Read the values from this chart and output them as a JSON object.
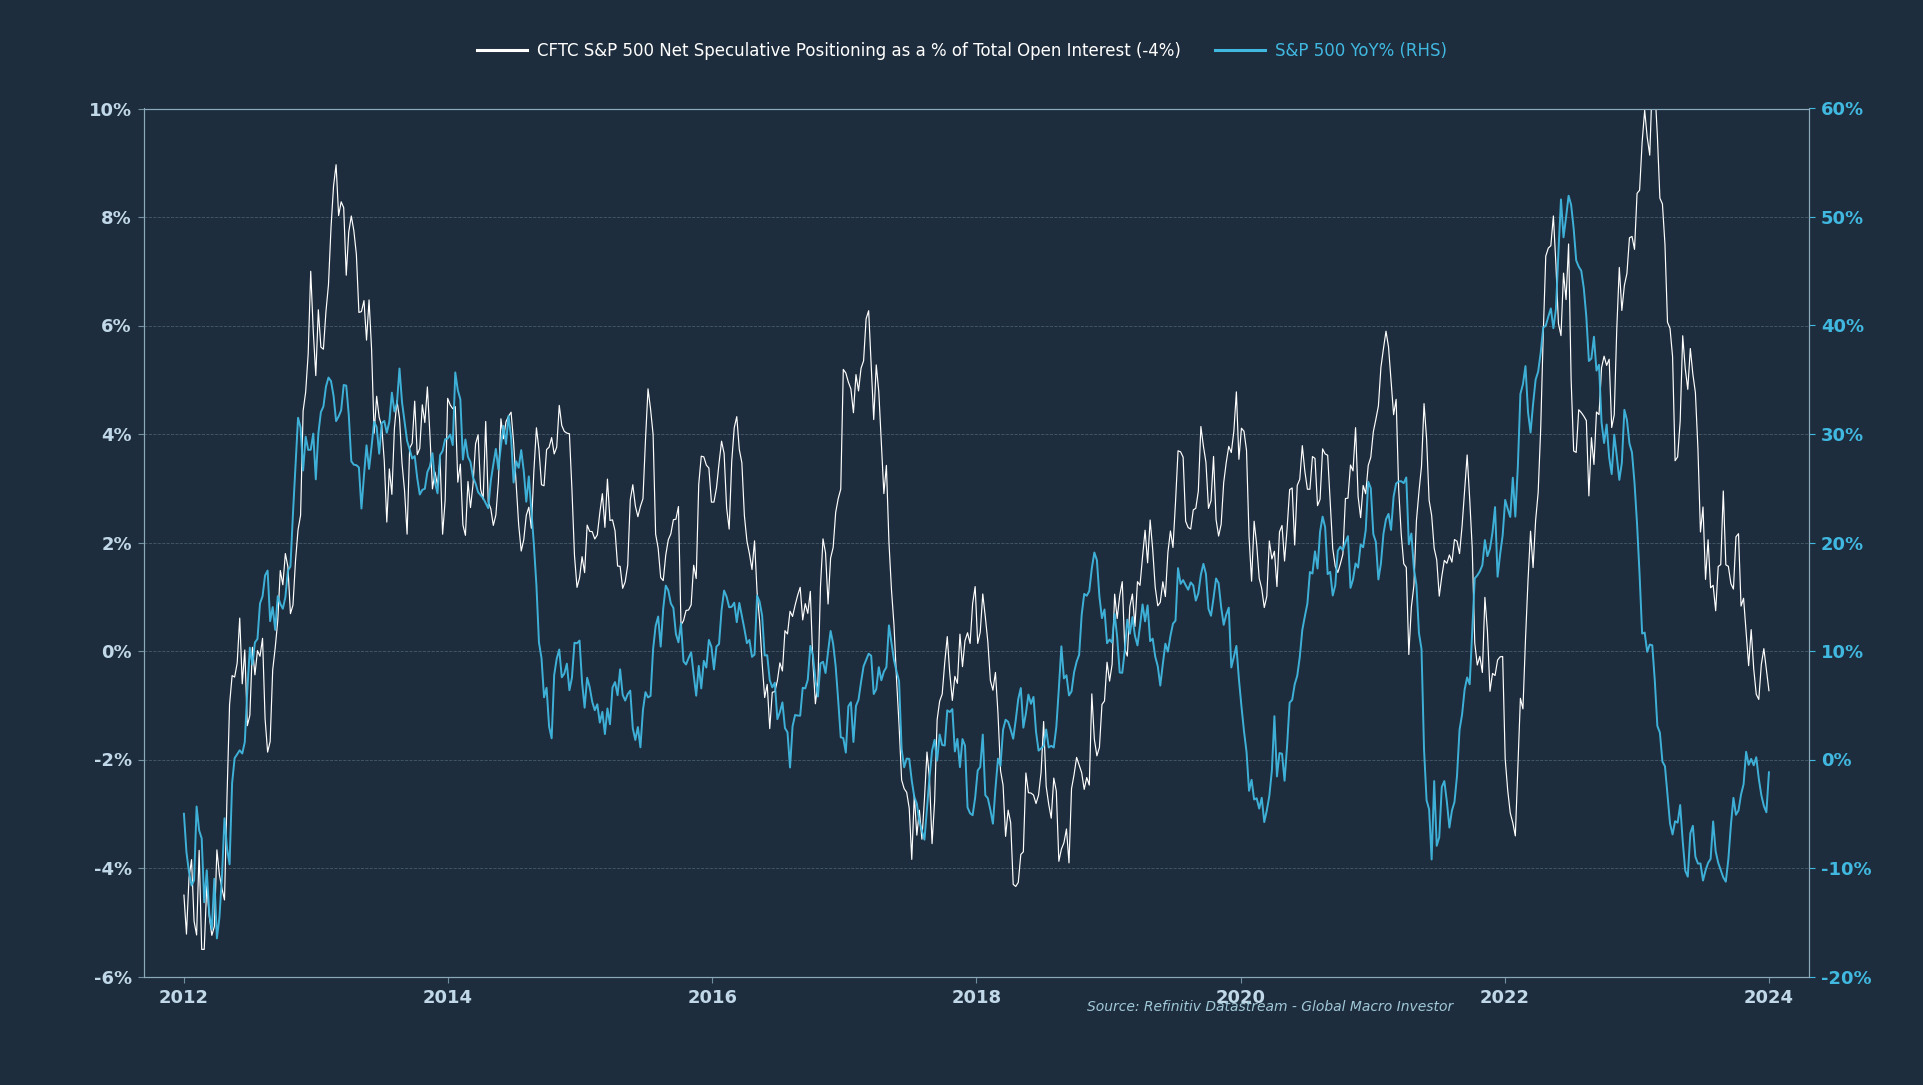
{
  "bg_top_left": "#1a2535",
  "bg_bottom_right": "#2d4060",
  "plot_bg": "#1e2d3d",
  "grid_color": "#4a6070",
  "frame_color": "#7090a0",
  "legend_label_white": "CFTC S&P 500 Net Speculative Positioning as a % of Total Open Interest (-4%)",
  "legend_label_blue": "S&P 500 YoY% (RHS)",
  "source_text": "Source: Refinitiv Datastream - Global Macro Investor",
  "white_color": "#ffffff",
  "blue_color": "#40b8e0",
  "tick_color": "#c0d8e8",
  "left_ylim": [
    -6,
    10
  ],
  "right_ylim": [
    -20,
    60
  ],
  "left_yticks": [
    -6,
    -4,
    -2,
    0,
    2,
    4,
    6,
    8,
    10
  ],
  "right_yticks": [
    -20,
    -10,
    0,
    10,
    20,
    30,
    40,
    50,
    60
  ],
  "xtick_years": [
    2012,
    2014,
    2016,
    2018,
    2020,
    2022,
    2024
  ],
  "xlim": [
    2011.7,
    2024.3
  ]
}
